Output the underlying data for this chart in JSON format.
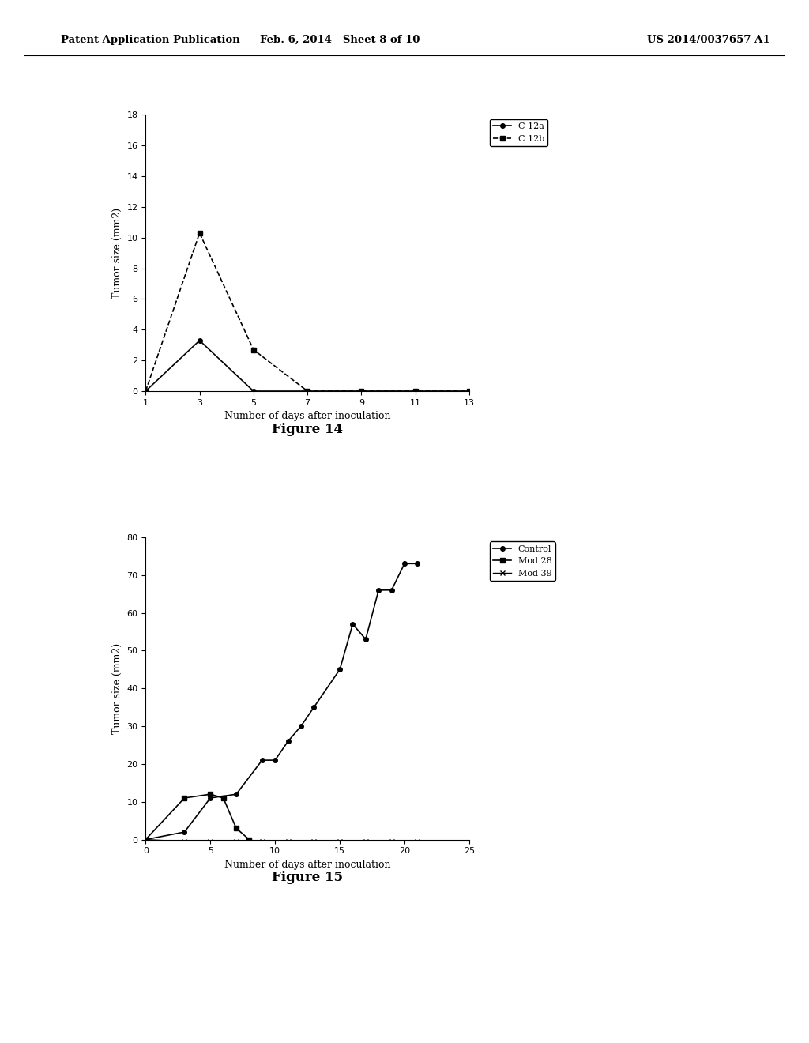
{
  "header_left": "Patent Application Publication",
  "header_mid": "Feb. 6, 2014   Sheet 8 of 10",
  "header_right": "US 2014/0037657 A1",
  "fig14": {
    "title": "Figure 14",
    "xlabel": "Number of days after inoculation",
    "ylabel": "Tumor size (mm2)",
    "ylim": [
      0,
      18
    ],
    "yticks": [
      0,
      2,
      4,
      6,
      8,
      10,
      12,
      14,
      16,
      18
    ],
    "xlim": [
      1,
      13
    ],
    "xticks": [
      1,
      3,
      5,
      7,
      9,
      11,
      13
    ],
    "series": [
      {
        "label": "C 12a",
        "x": [
          1,
          3,
          5,
          7,
          9,
          11,
          13
        ],
        "y": [
          0,
          3.3,
          0.0,
          0.0,
          0.0,
          0.0,
          0.0
        ],
        "color": "#000000",
        "marker": "o",
        "linestyle": "-",
        "linewidth": 1.2
      },
      {
        "label": "C 12b",
        "x": [
          1,
          3,
          5,
          7,
          9,
          11,
          13
        ],
        "y": [
          0,
          10.3,
          2.7,
          0.0,
          0.0,
          0.0,
          0.0
        ],
        "color": "#000000",
        "marker": "s",
        "linestyle": "--",
        "linewidth": 1.2
      }
    ]
  },
  "fig15": {
    "title": "Figure 15",
    "xlabel": "Number of days after inoculation",
    "ylabel": "Tumor size (mm2)",
    "ylim": [
      0,
      80
    ],
    "yticks": [
      0,
      10,
      20,
      30,
      40,
      50,
      60,
      70,
      80
    ],
    "xlim": [
      0,
      25
    ],
    "xticks": [
      0,
      5,
      10,
      15,
      20,
      25
    ],
    "series": [
      {
        "label": "Control",
        "x": [
          0,
          3,
          5,
          7,
          9,
          10,
          11,
          12,
          13,
          15,
          16,
          17,
          18,
          19,
          20,
          21
        ],
        "y": [
          0,
          2,
          11,
          12,
          21,
          21,
          26,
          30,
          35,
          45,
          57,
          53,
          66,
          66,
          73,
          73
        ],
        "color": "#000000",
        "marker": "o",
        "linestyle": "-",
        "linewidth": 1.2
      },
      {
        "label": "Mod 28",
        "x": [
          0,
          3,
          5,
          6,
          7,
          8,
          9
        ],
        "y": [
          0,
          11,
          12,
          11,
          3,
          0,
          -1
        ],
        "color": "#000000",
        "marker": "s",
        "linestyle": "-",
        "linewidth": 1.2
      },
      {
        "label": "Mod 39",
        "x": [
          0,
          3,
          5,
          7,
          9,
          11,
          13,
          15,
          17,
          19,
          21
        ],
        "y": [
          0,
          -0.5,
          -0.5,
          -0.5,
          -0.5,
          -0.5,
          -0.5,
          -0.5,
          -0.5,
          -0.5,
          -0.5
        ],
        "color": "#000000",
        "marker": "x",
        "linestyle": "-",
        "linewidth": 1.0
      }
    ]
  },
  "background_color": "#ffffff",
  "text_color": "#000000",
  "header_fontsize": 9.5,
  "axis_fontsize": 9,
  "tick_fontsize": 8,
  "legend_fontsize": 8,
  "title_fontsize": 12
}
